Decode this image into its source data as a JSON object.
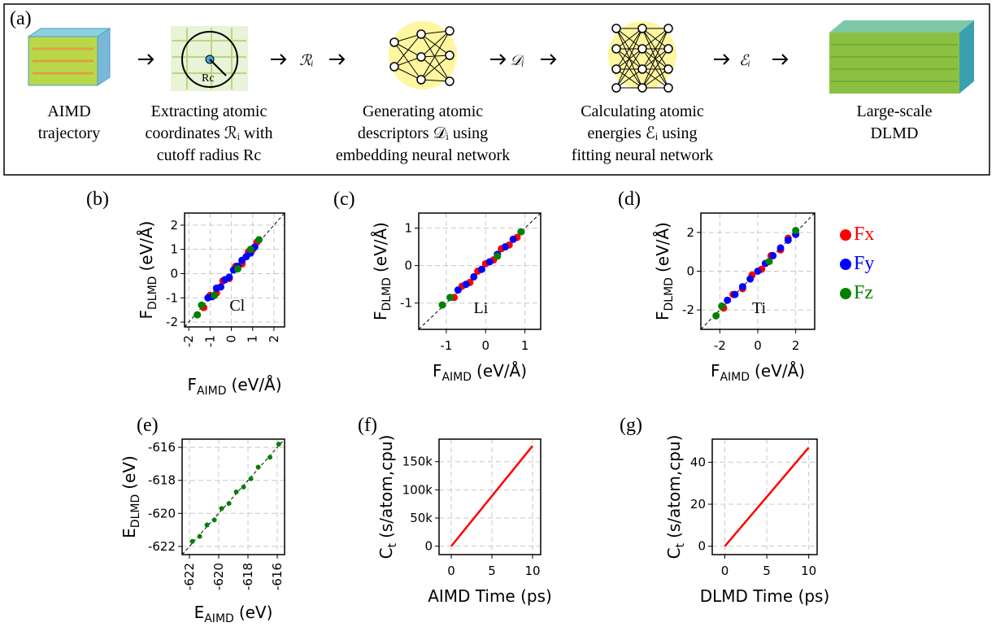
{
  "workflow": {
    "label": "(a)",
    "steps": [
      {
        "caption": [
          "AIMD",
          "trajectory"
        ]
      },
      {
        "caption": [
          "Extracting atomic",
          "coordinates ℛᵢ with",
          "cutoff radius Rc"
        ],
        "icon_label": "Rc"
      },
      {
        "caption": [
          "Generating atomic",
          "descriptors 𝒟ᵢ using",
          "embedding neural network"
        ]
      },
      {
        "caption": [
          "Calculating atomic",
          "energies ℰᵢ using",
          "fitting neural network"
        ]
      },
      {
        "caption": [
          "Large-scale",
          "DLMD"
        ]
      }
    ],
    "symbols": [
      "ℛᵢ",
      "𝒟ᵢ",
      "ℰᵢ"
    ]
  },
  "chart_data": [
    {
      "type": "scatter",
      "panel": "(b)",
      "annotation": "Cl",
      "xlabel": {
        "text": "F",
        "sub": "AIMD",
        "unit": "(eV/Å)"
      },
      "ylabel": {
        "text": "F",
        "sub": "DLMD",
        "unit": "(eV/Å)"
      },
      "xlim": [
        -2.2,
        2.5
      ],
      "ylim": [
        -2.2,
        2.5
      ],
      "xticks": [
        -2,
        -1,
        0,
        1,
        2
      ],
      "yticks": [
        -2,
        -1,
        0,
        1,
        2
      ],
      "xtick_rotation": 90,
      "grid": true,
      "series": [
        {
          "name": "Fx",
          "color": "#ff0000",
          "x": [
            -1.3,
            -1.0,
            -0.7,
            -0.4,
            -0.1,
            0.2,
            0.5,
            0.8,
            1.0,
            1.2
          ],
          "values": [
            -1.4,
            -0.9,
            -0.8,
            -0.3,
            -0.2,
            0.3,
            0.4,
            0.9,
            1.0,
            1.3
          ]
        },
        {
          "name": "Fy",
          "color": "#0000ff",
          "x": [
            -1.1,
            -0.9,
            -0.7,
            -0.5,
            -0.3,
            -0.1,
            0.1,
            0.3,
            0.5,
            0.7,
            0.9,
            1.1
          ],
          "values": [
            -1.0,
            -0.95,
            -0.6,
            -0.55,
            -0.25,
            -0.15,
            0.15,
            0.3,
            0.55,
            0.7,
            0.85,
            1.1
          ]
        },
        {
          "name": "Fz",
          "color": "#008000",
          "x": [
            -1.6,
            -1.4,
            -0.8,
            0.3,
            0.9,
            1.3
          ],
          "values": [
            -1.7,
            -1.3,
            -0.9,
            0.2,
            1.0,
            1.4
          ]
        }
      ]
    },
    {
      "type": "scatter",
      "panel": "(c)",
      "annotation": "Li",
      "xlabel": {
        "text": "F",
        "sub": "AIMD",
        "unit": "(eV/Å)"
      },
      "ylabel": {
        "text": "F",
        "sub": "DLMD",
        "unit": "(eV/Å)"
      },
      "xlim": [
        -1.7,
        1.4
      ],
      "ylim": [
        -1.7,
        1.4
      ],
      "xticks": [
        -1,
        0,
        1
      ],
      "yticks": [
        -1,
        0,
        1
      ],
      "grid": true,
      "series": [
        {
          "name": "Fx",
          "color": "#ff0000",
          "x": [
            -0.8,
            -0.6,
            -0.4,
            -0.2,
            0,
            0.2,
            0.4,
            0.6,
            0.8
          ],
          "values": [
            -0.85,
            -0.55,
            -0.45,
            -0.15,
            0.05,
            0.15,
            0.45,
            0.55,
            0.75
          ]
        },
        {
          "name": "Fy",
          "color": "#0000ff",
          "x": [
            -0.7,
            -0.5,
            -0.3,
            -0.1,
            0.1,
            0.3,
            0.5,
            0.7
          ],
          "values": [
            -0.65,
            -0.5,
            -0.3,
            -0.1,
            0.1,
            0.3,
            0.5,
            0.7
          ]
        },
        {
          "name": "Fz",
          "color": "#008000",
          "x": [
            -1.1,
            -0.9,
            0.3,
            0.9
          ],
          "values": [
            -1.05,
            -0.85,
            0.25,
            0.9
          ]
        }
      ]
    },
    {
      "type": "scatter",
      "panel": "(d)",
      "annotation": "Ti",
      "xlabel": {
        "text": "F",
        "sub": "AIMD",
        "unit": "(eV/Å)"
      },
      "ylabel": {
        "text": "F",
        "sub": "DLMD",
        "unit": "(eV/Å)"
      },
      "xlim": [
        -3,
        3
      ],
      "ylim": [
        -3,
        3
      ],
      "xticks": [
        -2,
        0,
        2
      ],
      "yticks": [
        -2,
        0,
        2
      ],
      "grid": true,
      "series": [
        {
          "name": "Fx",
          "color": "#ff0000",
          "x": [
            -1.8,
            -1.3,
            -0.8,
            -0.3,
            0.2,
            0.7,
            1.2,
            1.6
          ],
          "values": [
            -1.9,
            -1.2,
            -0.9,
            -0.2,
            0.1,
            0.8,
            1.1,
            1.7
          ]
        },
        {
          "name": "Fy",
          "color": "#0000ff",
          "x": [
            -1.6,
            -1.2,
            -0.8,
            -0.4,
            0,
            0.4,
            0.8,
            1.2,
            1.6,
            2.0
          ],
          "values": [
            -1.5,
            -1.2,
            -0.8,
            -0.4,
            0,
            0.4,
            0.8,
            1.2,
            1.6,
            1.9
          ]
        },
        {
          "name": "Fz",
          "color": "#008000",
          "x": [
            -2.2,
            -1.9,
            0.6,
            2.0
          ],
          "values": [
            -2.3,
            -1.8,
            0.5,
            2.1
          ]
        }
      ]
    },
    {
      "type": "scatter",
      "panel": "(e)",
      "xlabel": {
        "text": "E",
        "sub": "AIMD",
        "unit": "(eV)"
      },
      "ylabel": {
        "text": "E",
        "sub": "DLMD",
        "unit": "(eV)"
      },
      "xlim": [
        -622.5,
        -615.5
      ],
      "ylim": [
        -622.5,
        -615.5
      ],
      "xticks": [
        -622,
        -620,
        -618,
        -616
      ],
      "yticks": [
        -622,
        -620,
        -618,
        -616
      ],
      "xtick_rotation": 90,
      "grid": true,
      "series": [
        {
          "color": "#008000",
          "x": [
            -621.8,
            -621.3,
            -620.8,
            -620.3,
            -619.8,
            -619.3,
            -618.8,
            -618.3,
            -617.8,
            -617.3,
            -616.5,
            -615.9
          ],
          "values": [
            -621.7,
            -621.4,
            -620.7,
            -620.4,
            -619.7,
            -619.4,
            -618.7,
            -618.4,
            -617.9,
            -617.2,
            -616.6,
            -615.8
          ]
        }
      ]
    },
    {
      "type": "line",
      "panel": "(f)",
      "xlabel": {
        "text": "AIMD Time (ps)"
      },
      "ylabel": {
        "text": "C",
        "sub": "t",
        "unit": "(s/atom,cpu)"
      },
      "xlim": [
        -1.5,
        11
      ],
      "ylim": [
        -15000,
        190000
      ],
      "xticks": [
        0,
        5,
        10
      ],
      "yticks": [
        0,
        {
          "value": 50000,
          "label": "50k"
        },
        {
          "value": 100000,
          "label": "100k"
        },
        {
          "value": 150000,
          "label": "150k"
        }
      ],
      "grid": true,
      "x": [
        0,
        10
      ],
      "series": [
        {
          "color": "#ff0000",
          "values": [
            0,
            178000
          ]
        }
      ]
    },
    {
      "type": "line",
      "panel": "(g)",
      "xlabel": {
        "text": "DLMD Time (ps)"
      },
      "ylabel": {
        "text": "C",
        "sub": "t",
        "unit": "(s/atom,cpu)"
      },
      "xlim": [
        -1.5,
        11
      ],
      "ylim": [
        -4,
        51
      ],
      "xticks": [
        0,
        5,
        10
      ],
      "yticks": [
        0,
        20,
        40
      ],
      "grid": true,
      "x": [
        0,
        10
      ],
      "series": [
        {
          "color": "#ff0000",
          "values": [
            0,
            47
          ]
        }
      ]
    }
  ]
}
